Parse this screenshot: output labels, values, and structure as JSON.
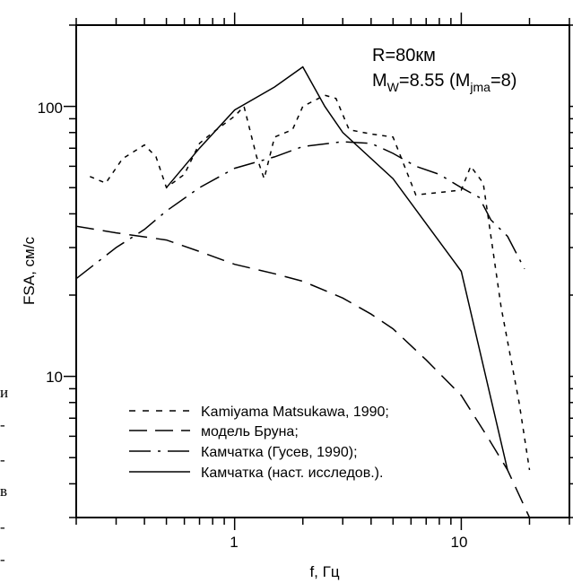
{
  "chart_data": {
    "type": "line",
    "title": "",
    "xlabel": "f, Гц",
    "ylabel": "FSA, см/с",
    "xscale": "log",
    "yscale": "log",
    "xlim": [
      0.2,
      30
    ],
    "ylim": [
      3,
      200
    ],
    "x_tick_labels": [
      "1",
      "10"
    ],
    "y_tick_labels": [
      "10",
      "100"
    ],
    "grid": false,
    "annotations": [
      "R=80км",
      "M",
      "W",
      "=8.55 (M",
      "jma",
      "=8)"
    ],
    "legend_position": "bottom-left",
    "series": [
      {
        "name": "Kamiyama Matsukawa, 1990;",
        "style": "dash-short",
        "color": "#000000",
        "points": [
          [
            0.23,
            55
          ],
          [
            0.27,
            52
          ],
          [
            0.32,
            64
          ],
          [
            0.4,
            72
          ],
          [
            0.45,
            65
          ],
          [
            0.5,
            50
          ],
          [
            0.6,
            56
          ],
          [
            0.7,
            73
          ],
          [
            0.8,
            80
          ],
          [
            1.0,
            92
          ],
          [
            1.1,
            100
          ],
          [
            1.25,
            65
          ],
          [
            1.35,
            54
          ],
          [
            1.5,
            77
          ],
          [
            1.8,
            82
          ],
          [
            2.0,
            100
          ],
          [
            2.5,
            110
          ],
          [
            2.8,
            107
          ],
          [
            3.2,
            82
          ],
          [
            4.0,
            79
          ],
          [
            5.0,
            77
          ],
          [
            6.3,
            47
          ],
          [
            8.0,
            48
          ],
          [
            10.0,
            49
          ],
          [
            11.0,
            60
          ],
          [
            12.5,
            52
          ],
          [
            15.0,
            18
          ],
          [
            18.0,
            8
          ],
          [
            20.0,
            4.5
          ]
        ]
      },
      {
        "name": "модель Бруна;",
        "style": "dash-long",
        "color": "#000000",
        "points": [
          [
            0.2,
            36
          ],
          [
            0.3,
            34
          ],
          [
            0.5,
            32
          ],
          [
            0.7,
            29
          ],
          [
            1.0,
            26
          ],
          [
            1.5,
            24
          ],
          [
            2.0,
            22.5
          ],
          [
            3.0,
            19.5
          ],
          [
            4.0,
            17
          ],
          [
            5.0,
            15
          ],
          [
            7.0,
            11.5
          ],
          [
            10.0,
            8.5
          ],
          [
            13.0,
            6
          ],
          [
            16.0,
            4.5
          ],
          [
            20.0,
            3
          ]
        ]
      },
      {
        "name": "Камчатка (Гусев, 1990);",
        "style": "dash-dot",
        "color": "#000000",
        "points": [
          [
            0.2,
            23
          ],
          [
            0.3,
            30
          ],
          [
            0.4,
            35
          ],
          [
            0.5,
            41
          ],
          [
            0.7,
            50
          ],
          [
            1.0,
            59
          ],
          [
            1.5,
            65
          ],
          [
            2.0,
            71
          ],
          [
            3.0,
            74
          ],
          [
            4.0,
            73
          ],
          [
            5.0,
            67
          ],
          [
            6.3,
            60
          ],
          [
            8.0,
            56
          ],
          [
            10.0,
            50
          ],
          [
            12.0,
            46
          ],
          [
            13.5,
            38
          ],
          [
            16.0,
            33
          ],
          [
            19.0,
            25
          ]
        ]
      },
      {
        "name": "Камчатка (наст. исследов.).",
        "style": "solid",
        "color": "#000000",
        "points": [
          [
            0.5,
            50
          ],
          [
            0.7,
            70
          ],
          [
            1.0,
            97
          ],
          [
            1.5,
            118
          ],
          [
            2.0,
            140
          ],
          [
            2.5,
            100
          ],
          [
            3.0,
            80
          ],
          [
            5.0,
            54
          ],
          [
            10.0,
            24.5
          ],
          [
            16.0,
            4.5
          ]
        ]
      }
    ]
  },
  "margin_text": [
    "и",
    "-",
    "-",
    "в",
    "-",
    "-"
  ]
}
